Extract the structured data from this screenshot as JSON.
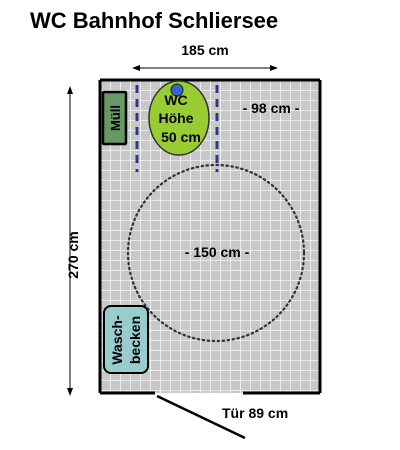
{
  "title": "WC Bahnhof Schliersee",
  "width_label": "185 cm",
  "height_label": "270 cm",
  "wc": {
    "line1": "WC",
    "line2": "Höhe",
    "line3": "50 cm"
  },
  "trash_label": "Müll",
  "sink": {
    "line1": "Wasch-",
    "line2": "becken"
  },
  "clearance_side_label": "- 98 cm -",
  "turning_circle_label": "- 150 cm -",
  "door_label": "Tür 89 cm",
  "colors": {
    "floor": "#c8c8c8",
    "grid": "#ffffff",
    "wall": "#000000",
    "wc": "#99cc33",
    "trash": "#669966",
    "sink": "#99cccc",
    "flush_button": "#3366cc",
    "dash": "#2a3a8a"
  },
  "icons": {
    "flush_button": "flush-button-icon"
  }
}
